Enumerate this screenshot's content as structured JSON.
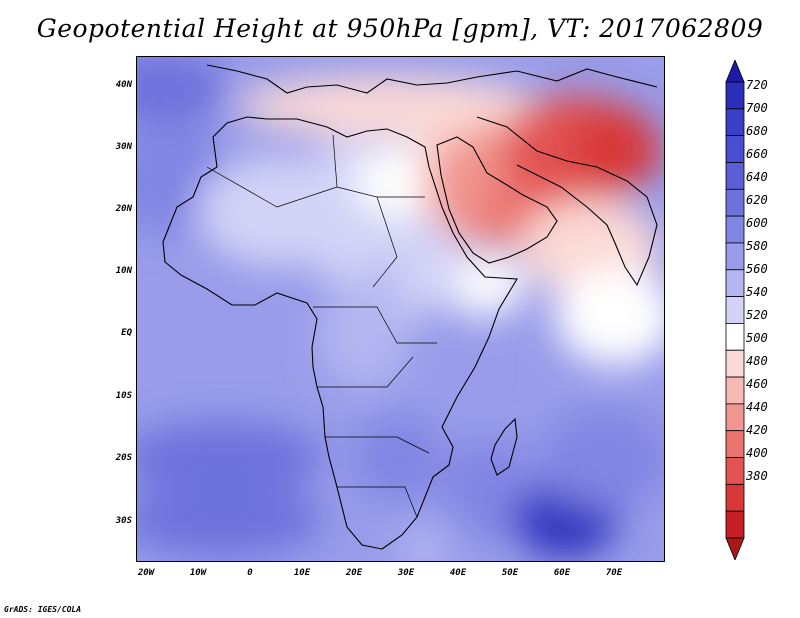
{
  "title": "Geopotential Height at 950hPa [gpm], VT: 2017062809",
  "credit": "GrADS: IGES/COLA",
  "map": {
    "variable": "Geopotential Height",
    "level_hPa": 950,
    "units": "gpm",
    "valid_time": "2017062809",
    "lon_range": [
      -25,
      80
    ],
    "lat_range": [
      -37,
      45
    ],
    "x_ticks": [
      {
        "lon": -20,
        "label": "20W"
      },
      {
        "lon": -10,
        "label": "10W"
      },
      {
        "lon": 0,
        "label": "0"
      },
      {
        "lon": 10,
        "label": "10E"
      },
      {
        "lon": 20,
        "label": "20E"
      },
      {
        "lon": 30,
        "label": "30E"
      },
      {
        "lon": 40,
        "label": "40E"
      },
      {
        "lon": 50,
        "label": "50E"
      },
      {
        "lon": 60,
        "label": "60E"
      },
      {
        "lon": 70,
        "label": "70E"
      }
    ],
    "y_ticks": [
      {
        "lat": 40,
        "label": "40N"
      },
      {
        "lat": 30,
        "label": "30N"
      },
      {
        "lat": 20,
        "label": "20N"
      },
      {
        "lat": 10,
        "label": "10N"
      },
      {
        "lat": 0,
        "label": "EQ"
      },
      {
        "lat": -10,
        "label": "10S"
      },
      {
        "lat": -20,
        "label": "20S"
      },
      {
        "lat": -30,
        "label": "30S"
      }
    ],
    "background_value": 590,
    "features": [
      {
        "name": "atlantic-high",
        "lon": -20,
        "lat": 40,
        "rx": 13,
        "ry": 6,
        "value": 630
      },
      {
        "name": "subtropical-atlantic",
        "lon": -18,
        "lat": 25,
        "rx": 12,
        "ry": 9,
        "value": 610
      },
      {
        "name": "south-atlantic-band",
        "lon": -8,
        "lat": -20,
        "rx": 20,
        "ry": 6,
        "value": 620
      },
      {
        "name": "south-atlantic-high",
        "lon": -8,
        "lat": -30,
        "rx": 20,
        "ry": 6,
        "value": 635
      },
      {
        "name": "sahara-plateau",
        "lon": 3,
        "lat": 20,
        "rx": 16,
        "ry": 9,
        "value": 550
      },
      {
        "name": "central-sahara",
        "lon": 17,
        "lat": 20,
        "rx": 10,
        "ry": 12,
        "value": 545
      },
      {
        "name": "eastern-africa-low",
        "lon": 33,
        "lat": 13,
        "rx": 8,
        "ry": 12,
        "value": 540
      },
      {
        "name": "northeast-africa",
        "lon": 27,
        "lat": 25,
        "rx": 9,
        "ry": 6,
        "value": 530
      },
      {
        "name": "mediterranean-belt",
        "lon": 25,
        "lat": 37,
        "rx": 30,
        "ry": 5,
        "value": 500
      },
      {
        "name": "levant",
        "lon": 37,
        "lat": 32,
        "rx": 7,
        "ry": 7,
        "value": 510
      },
      {
        "name": "arabian-low",
        "lon": 47,
        "lat": 24,
        "rx": 15,
        "ry": 10,
        "value": 460
      },
      {
        "name": "rub-al-khali",
        "lon": 50,
        "lat": 20,
        "rx": 8,
        "ry": 5,
        "value": 450
      },
      {
        "name": "iran-pakistan-low",
        "lon": 62,
        "lat": 30,
        "rx": 15,
        "ry": 9,
        "value": 420
      },
      {
        "name": "thar-low",
        "lon": 70,
        "lat": 30,
        "rx": 9,
        "ry": 7,
        "value": 400
      },
      {
        "name": "arabian-sea",
        "lon": 65,
        "lat": 14,
        "rx": 14,
        "ry": 8,
        "value": 510
      },
      {
        "name": "indian-ocean-north",
        "lon": 70,
        "lat": 3,
        "rx": 12,
        "ry": 8,
        "value": 535
      },
      {
        "name": "horn-of-africa",
        "lon": 45,
        "lat": 8,
        "rx": 7,
        "ry": 5,
        "value": 520
      },
      {
        "name": "congo-basin",
        "lon": 20,
        "lat": 0,
        "rx": 9,
        "ry": 9,
        "value": 575
      },
      {
        "name": "east-africa-plateau",
        "lon": 35,
        "lat": -5,
        "rx": 7,
        "ry": 10,
        "value": 590
      },
      {
        "name": "southern-africa",
        "lon": 27,
        "lat": -20,
        "rx": 9,
        "ry": 7,
        "value": 615
      },
      {
        "name": "mozambique-channel",
        "lon": 45,
        "lat": -25,
        "rx": 9,
        "ry": 8,
        "value": 615
      },
      {
        "name": "agulhas-gap",
        "lon": 32,
        "lat": -35,
        "rx": 5,
        "ry": 4,
        "value": 560
      },
      {
        "name": "mascarene-high",
        "lon": 60,
        "lat": -30,
        "rx": 11,
        "ry": 6,
        "value": 690
      },
      {
        "name": "mascarene-core",
        "lon": 60,
        "lat": -33,
        "rx": 7,
        "ry": 3,
        "value": 700
      },
      {
        "name": "south-indian-ocean",
        "lon": 68,
        "lat": -20,
        "rx": 13,
        "ry": 8,
        "value": 600
      }
    ]
  },
  "colorbar": {
    "levels": [
      "720",
      "700",
      "680",
      "660",
      "640",
      "620",
      "600",
      "580",
      "560",
      "540",
      "520",
      "500",
      "480",
      "460",
      "440",
      "420",
      "400",
      "380"
    ],
    "colors": [
      "#1c1aa8",
      "#2a2fb9",
      "#3a3fc6",
      "#4a4ed0",
      "#5b5fd6",
      "#6e72dc",
      "#8185e3",
      "#989cea",
      "#b4b6f1",
      "#d2d3f7",
      "#ffffff",
      "#fbd9d6",
      "#f7b9b3",
      "#f19690",
      "#ea746f",
      "#e25352",
      "#d83838",
      "#c81f25",
      "#a81818"
    ]
  }
}
